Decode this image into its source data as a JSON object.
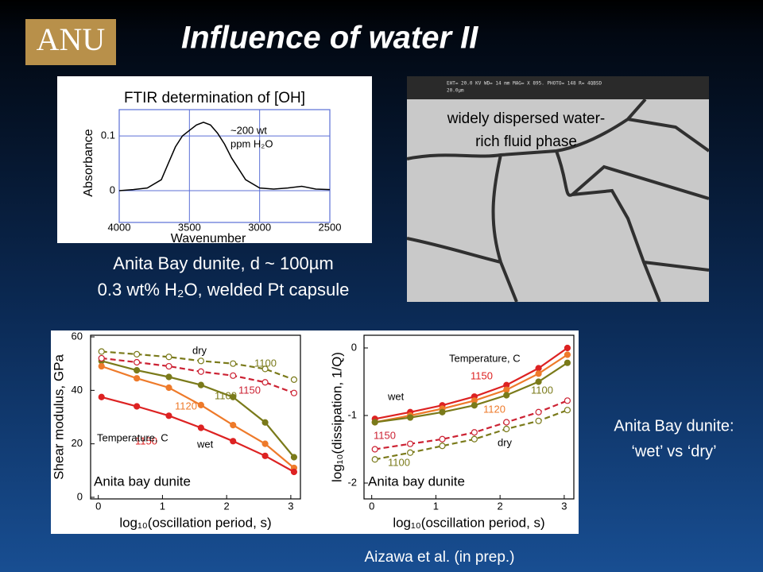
{
  "header": {
    "logo": "ANU",
    "title": "Influence of water II"
  },
  "ftir": {
    "type": "line",
    "title": "FTIR determination of [OH]",
    "x_label": "Wavenumber",
    "y_label": "Absorbance",
    "annotations": [
      {
        "text": "~200 wt",
        "color": "#000000"
      },
      {
        "text": "ppm H₂O",
        "color": "#000000"
      }
    ],
    "x": [
      4000,
      3900,
      3800,
      3700,
      3650,
      3600,
      3550,
      3500,
      3450,
      3400,
      3350,
      3300,
      3250,
      3200,
      3100,
      3000,
      2900,
      2800,
      2700,
      2600,
      2500
    ],
    "series": [
      {
        "color": "#000000",
        "line_style": "solid",
        "marker": "none",
        "values": [
          0,
          0.002,
          0.005,
          0.02,
          0.05,
          0.08,
          0.1,
          0.11,
          0.12,
          0.125,
          0.12,
          0.105,
          0.085,
          0.06,
          0.02,
          0.005,
          0.003,
          0.005,
          0.008,
          0.003,
          0.002
        ]
      }
    ],
    "xlim": [
      4000,
      2500
    ],
    "xticks": [
      4000,
      3500,
      3000,
      2500
    ],
    "ylim": [
      -0.058,
      0.148
    ],
    "yticks": [
      0,
      0.1
    ],
    "grid": true,
    "grid_color": "#5b6fd6"
  },
  "sem": {
    "info": "EHT= 20.0 KV   WD= 14   mm     MAG= X 895.    PHOTO= 148    R= 4QBSD",
    "scale": "20.0µm",
    "caption": [
      "widely dispersed water-",
      "rich fluid phase"
    ]
  },
  "sample_caption": [
    "Anita Bay dunite, d ~ 100µm",
    "0.3 wt% H₂O, welded Pt capsule"
  ],
  "shear": {
    "type": "line",
    "x_label": "log₁₀(oscillation period, s)",
    "y_label": "Shear modulus, GPa",
    "x": [
      0.05,
      0.6,
      1.1,
      1.6,
      2.1,
      2.6,
      3.05
    ],
    "series": [
      {
        "color": "#7a7a1a",
        "line_style": "solid",
        "marker": "filled",
        "values": [
          51,
          47.5,
          45,
          42,
          37.5,
          28,
          15
        ]
      },
      {
        "color": "#ee7a2a",
        "line_style": "solid",
        "marker": "filled",
        "values": [
          49,
          44.5,
          41,
          34.5,
          27,
          20,
          11
        ]
      },
      {
        "color": "#dd2222",
        "line_style": "solid",
        "marker": "filled",
        "values": [
          37.5,
          34,
          30.5,
          26,
          21,
          15.5,
          9.5
        ]
      },
      {
        "color": "#7a7a1a",
        "line_style": "dashed",
        "marker": "open",
        "values": [
          54.5,
          53.5,
          52.5,
          51,
          50,
          48,
          44
        ]
      },
      {
        "color": "#cc2233",
        "line_style": "dashed",
        "marker": "open",
        "values": [
          52,
          50.5,
          49,
          47,
          45.5,
          43,
          39
        ]
      }
    ],
    "annotations": [
      {
        "text": "dry",
        "color": "#000000"
      },
      {
        "text": "1100",
        "color": "#7a7a1a"
      },
      {
        "text": "1150",
        "color": "#cc2233"
      },
      {
        "text": "1100",
        "color": "#7a7a1a"
      },
      {
        "text": "1120",
        "color": "#ee7a2a"
      },
      {
        "text": "1150",
        "color": "#dd2222"
      },
      {
        "text": "Temperature, C",
        "color": "#000000"
      },
      {
        "text": "wet",
        "color": "#000000"
      },
      {
        "text": "Anita bay dunite",
        "color": "#000000"
      }
    ],
    "xlim": [
      -0.12,
      3.15
    ],
    "xticks": [
      0,
      1,
      2,
      3
    ],
    "ylim": [
      -0.6,
      60.6
    ],
    "yticks": [
      0,
      20,
      40,
      60
    ],
    "grid": false
  },
  "dissipation": {
    "type": "line",
    "x_label": "log₁₀(oscillation period, s)",
    "y_label": "log₁₀(dissipation, 1/Q)",
    "x": [
      0.05,
      0.6,
      1.1,
      1.6,
      2.1,
      2.6,
      3.05
    ],
    "series": [
      {
        "color": "#dd2222",
        "line_style": "solid",
        "marker": "filled",
        "values": [
          -1.05,
          -0.95,
          -0.85,
          -0.72,
          -0.55,
          -0.3,
          0.0
        ]
      },
      {
        "color": "#ee7a2a",
        "line_style": "solid",
        "marker": "filled",
        "values": [
          -1.1,
          -1.0,
          -0.9,
          -0.78,
          -0.62,
          -0.38,
          -0.1
        ]
      },
      {
        "color": "#7a7a1a",
        "line_style": "solid",
        "marker": "filled",
        "values": [
          -1.1,
          -1.03,
          -0.95,
          -0.85,
          -0.7,
          -0.5,
          -0.22
        ]
      },
      {
        "color": "#cc2233",
        "line_style": "dashed",
        "marker": "open",
        "values": [
          -1.5,
          -1.42,
          -1.35,
          -1.25,
          -1.1,
          -0.95,
          -0.78
        ]
      },
      {
        "color": "#7a7a1a",
        "line_style": "dashed",
        "marker": "open",
        "values": [
          -1.65,
          -1.55,
          -1.45,
          -1.35,
          -1.2,
          -1.08,
          -0.92
        ]
      }
    ],
    "annotations": [
      {
        "text": "Temperature, C",
        "color": "#000000"
      },
      {
        "text": "1150",
        "color": "#dd2222"
      },
      {
        "text": "1100",
        "color": "#7a7a1a"
      },
      {
        "text": "wet",
        "color": "#000000"
      },
      {
        "text": "1120",
        "color": "#ee7a2a"
      },
      {
        "text": "1150",
        "color": "#cc2233"
      },
      {
        "text": "dry",
        "color": "#000000"
      },
      {
        "text": "1100",
        "color": "#7a7a1a"
      },
      {
        "text": "Anita bay dunite",
        "color": "#000000"
      }
    ],
    "xlim": [
      -0.12,
      3.15
    ],
    "xticks": [
      0,
      1,
      2,
      3
    ],
    "ylim": [
      -2.235,
      0.188
    ],
    "yticks": [
      -2,
      -1,
      0
    ],
    "grid": false
  },
  "side_text": [
    "Anita Bay dunite:",
    "‘wet’ vs ‘dry’"
  ],
  "citation": "Aizawa et al. (in prep.)"
}
